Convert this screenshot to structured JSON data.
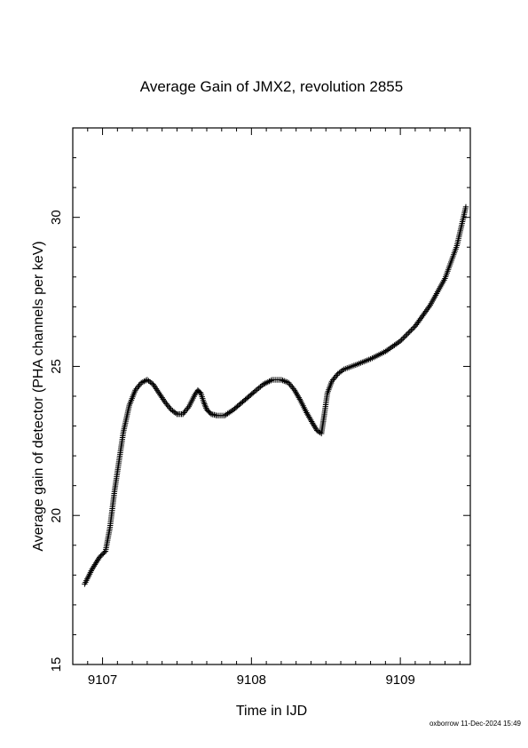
{
  "chart_data": {
    "type": "scatter",
    "title": "Average Gain of JMX2, revolution 2855",
    "xlabel": "Time in IJD",
    "ylabel": "Average gain of detector (PHA channels per keV)",
    "xlim": [
      9106.8,
      9109.47
    ],
    "ylim": [
      15,
      33
    ],
    "xticks": [
      9107,
      9108,
      9109
    ],
    "yticks": [
      15,
      20,
      25,
      30
    ],
    "grid": false,
    "marker": "plus",
    "color": "#000000",
    "series": [
      {
        "x": [
          9106.88,
          9106.93,
          9106.98,
          9107.02,
          9107.05,
          9107.08,
          9107.11,
          9107.14,
          9107.18,
          9107.22,
          9107.26,
          9107.3,
          9107.34,
          9107.38,
          9107.42,
          9107.46,
          9107.5,
          9107.54,
          9107.58,
          9107.62,
          9107.64,
          9107.66,
          9107.68,
          9107.7,
          9107.73,
          9107.77,
          9107.82,
          9107.88,
          9107.95,
          9108.02,
          9108.08,
          9108.14,
          9108.2,
          9108.25,
          9108.29,
          9108.33,
          9108.37,
          9108.41,
          9108.44,
          9108.47,
          9108.49,
          9108.51,
          9108.54,
          9108.58,
          9108.62,
          9108.7,
          9108.8,
          9108.9,
          9109.0,
          9109.1,
          9109.2,
          9109.3,
          9109.38,
          9109.44
        ],
        "y": [
          17.7,
          18.2,
          18.6,
          18.8,
          19.6,
          20.8,
          21.8,
          22.8,
          23.7,
          24.2,
          24.45,
          24.55,
          24.4,
          24.1,
          23.8,
          23.55,
          23.4,
          23.4,
          23.65,
          24.05,
          24.2,
          24.1,
          23.8,
          23.55,
          23.4,
          23.35,
          23.35,
          23.55,
          23.85,
          24.15,
          24.4,
          24.55,
          24.55,
          24.45,
          24.2,
          23.85,
          23.45,
          23.1,
          22.85,
          22.75,
          23.4,
          24.1,
          24.5,
          24.75,
          24.9,
          25.05,
          25.25,
          25.5,
          25.85,
          26.35,
          27.05,
          27.95,
          29.05,
          30.35
        ]
      }
    ]
  },
  "footer": {
    "stamp": "oxborrow 11-Dec-2024 15:49"
  }
}
